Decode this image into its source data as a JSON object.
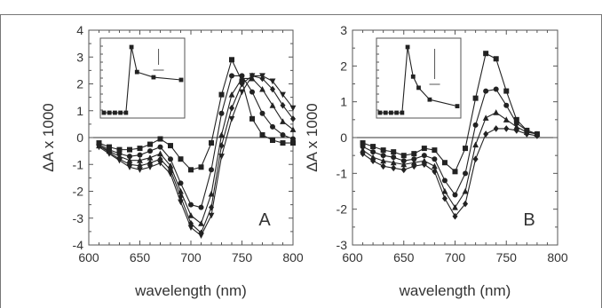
{
  "chart_data": [
    {
      "type": "line",
      "panel_label": "A",
      "xlabel": "wavelength (nm)",
      "ylabel": "ΔA x 1000",
      "xlim": [
        600,
        800
      ],
      "ylim": [
        -4,
        4
      ],
      "xticks": [
        600,
        650,
        700,
        750,
        800
      ],
      "yticks": [
        -4,
        -3,
        -2,
        -1,
        0,
        1,
        2,
        3,
        4
      ],
      "grid": false,
      "zero_line": true,
      "series": [
        {
          "marker": "square",
          "x": [
            610,
            620,
            630,
            640,
            650,
            660,
            670,
            680,
            690,
            700,
            710,
            720,
            730,
            740,
            750,
            760,
            770,
            780,
            790,
            800
          ],
          "y": [
            -0.2,
            -0.35,
            -0.45,
            -0.45,
            -0.4,
            -0.25,
            -0.05,
            -0.3,
            -0.8,
            -1.2,
            -1.1,
            -0.2,
            1.6,
            2.9,
            2.1,
            0.7,
            0.1,
            -0.1,
            -0.2,
            -0.2
          ]
        },
        {
          "marker": "circle",
          "x": [
            610,
            620,
            630,
            640,
            650,
            660,
            670,
            680,
            690,
            700,
            710,
            720,
            730,
            740,
            750,
            760,
            770,
            780,
            790,
            800
          ],
          "y": [
            -0.25,
            -0.45,
            -0.6,
            -0.7,
            -0.65,
            -0.5,
            -0.35,
            -0.8,
            -1.7,
            -2.5,
            -2.6,
            -1.2,
            0.9,
            2.3,
            2.3,
            1.7,
            0.9,
            0.4,
            0.1,
            -0.05
          ]
        },
        {
          "marker": "triangle-up",
          "x": [
            610,
            620,
            630,
            640,
            650,
            660,
            670,
            680,
            690,
            700,
            710,
            720,
            730,
            740,
            750,
            760,
            770,
            780,
            790,
            800
          ],
          "y": [
            -0.3,
            -0.5,
            -0.7,
            -0.85,
            -0.85,
            -0.75,
            -0.6,
            -1.05,
            -2.0,
            -2.9,
            -3.2,
            -2.1,
            0.1,
            1.6,
            2.2,
            2.2,
            1.8,
            1.2,
            0.6,
            0.3
          ]
        },
        {
          "marker": "diamond",
          "x": [
            610,
            620,
            630,
            640,
            650,
            660,
            670,
            680,
            690,
            700,
            710,
            720,
            730,
            740,
            750,
            760,
            770,
            780,
            790,
            800
          ],
          "y": [
            -0.3,
            -0.55,
            -0.8,
            -1.0,
            -1.05,
            -0.95,
            -0.8,
            -1.2,
            -2.2,
            -3.2,
            -3.55,
            -2.6,
            -0.3,
            1.1,
            2.0,
            2.3,
            2.2,
            1.8,
            1.2,
            0.7
          ]
        },
        {
          "marker": "triangle-down",
          "x": [
            610,
            620,
            630,
            640,
            650,
            660,
            670,
            680,
            690,
            700,
            710,
            720,
            730,
            740,
            750,
            760,
            770,
            780,
            790,
            800
          ],
          "y": [
            -0.35,
            -0.6,
            -0.85,
            -1.1,
            -1.2,
            -1.1,
            -0.95,
            -1.35,
            -2.4,
            -3.35,
            -3.65,
            -2.9,
            -0.7,
            0.7,
            1.7,
            2.3,
            2.3,
            2.1,
            1.6,
            1.1
          ]
        }
      ],
      "inset": {
        "series": [
          {
            "marker": "square",
            "x": [
              0,
              1,
              2,
              3,
              4,
              5,
              6,
              9,
              14
            ],
            "y": [
              0,
              0,
              0,
              0,
              0,
              1.0,
              0.62,
              0.54,
              0.5
            ]
          }
        ],
        "scale_bar": true
      }
    },
    {
      "type": "line",
      "panel_label": "B",
      "xlabel": "wavelength (nm)",
      "ylabel": "ΔA x 1000",
      "xlim": [
        600,
        800
      ],
      "ylim": [
        -3,
        3
      ],
      "xticks": [
        600,
        650,
        700,
        750,
        800
      ],
      "yticks": [
        -3,
        -2,
        -1,
        0,
        1,
        2,
        3
      ],
      "grid": false,
      "zero_line": true,
      "series": [
        {
          "marker": "square",
          "x": [
            610,
            620,
            630,
            640,
            650,
            660,
            670,
            680,
            690,
            700,
            710,
            720,
            730,
            740,
            750,
            760,
            770,
            780
          ],
          "y": [
            -0.15,
            -0.25,
            -0.35,
            -0.4,
            -0.5,
            -0.45,
            -0.3,
            -0.35,
            -0.7,
            -0.95,
            -0.3,
            1.1,
            2.35,
            2.2,
            1.3,
            0.5,
            0.2,
            0.1
          ]
        },
        {
          "marker": "circle",
          "x": [
            610,
            620,
            630,
            640,
            650,
            660,
            670,
            680,
            690,
            700,
            710,
            720,
            730,
            740,
            750,
            760,
            770,
            780
          ],
          "y": [
            -0.25,
            -0.4,
            -0.5,
            -0.55,
            -0.65,
            -0.6,
            -0.5,
            -0.6,
            -1.2,
            -1.6,
            -1.0,
            0.35,
            1.3,
            1.35,
            0.9,
            0.4,
            0.2,
            0.1
          ]
        },
        {
          "marker": "triangle-up",
          "x": [
            610,
            620,
            630,
            640,
            650,
            660,
            670,
            680,
            690,
            700,
            710,
            720,
            730,
            740,
            750,
            760,
            770,
            780
          ],
          "y": [
            -0.35,
            -0.55,
            -0.65,
            -0.7,
            -0.75,
            -0.7,
            -0.65,
            -0.8,
            -1.5,
            -1.95,
            -1.5,
            -0.2,
            0.55,
            0.7,
            0.5,
            0.3,
            0.15,
            0.1
          ]
        },
        {
          "marker": "diamond",
          "x": [
            610,
            620,
            630,
            640,
            650,
            660,
            670,
            680,
            690,
            700,
            710,
            720,
            730,
            740,
            750,
            760,
            770,
            780
          ],
          "y": [
            -0.45,
            -0.65,
            -0.8,
            -0.85,
            -0.9,
            -0.8,
            -0.75,
            -0.95,
            -1.7,
            -2.2,
            -1.85,
            -0.6,
            0.1,
            0.25,
            0.25,
            0.2,
            0.1,
            0.05
          ]
        }
      ],
      "inset": {
        "series": [
          {
            "marker": "square",
            "x": [
              0,
              1,
              2,
              3,
              4,
              5,
              6,
              7,
              9,
              14
            ],
            "y": [
              0,
              0,
              0,
              0,
              0,
              1.0,
              0.55,
              0.38,
              0.2,
              0.1
            ]
          }
        ],
        "scale_bar": true
      }
    }
  ]
}
